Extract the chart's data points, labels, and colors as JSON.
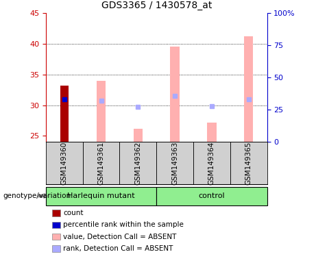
{
  "title": "GDS3365 / 1430578_at",
  "samples": [
    "GSM149360",
    "GSM149361",
    "GSM149362",
    "GSM149363",
    "GSM149364",
    "GSM149365"
  ],
  "ylim_left": [
    24,
    45
  ],
  "ylim_right": [
    0,
    100
  ],
  "yticks_left": [
    25,
    30,
    35,
    40,
    45
  ],
  "yticks_right": [
    0,
    25,
    50,
    75,
    100
  ],
  "ytick_labels_right": [
    "0",
    "25",
    "50",
    "75",
    "100%"
  ],
  "count_values": [
    33.2,
    null,
    null,
    null,
    null,
    null
  ],
  "rank_values": [
    31.0,
    null,
    null,
    null,
    null,
    null
  ],
  "absent_value_bars": [
    null,
    34.0,
    26.2,
    39.5,
    27.2,
    41.2
  ],
  "absent_rank_dots": [
    null,
    30.7,
    29.7,
    31.5,
    29.8,
    31.0
  ],
  "bar_bottom": 24,
  "count_color": "#aa0000",
  "rank_color": "#0000cc",
  "absent_value_color": "#ffb0b0",
  "absent_rank_color": "#aaaaff",
  "left_axis_color": "#cc0000",
  "right_axis_color": "#0000cc",
  "label_area_color": "#d0d0d0",
  "group_color": "#90ee90",
  "harlequin_label": "Harlequin mutant",
  "control_label": "control",
  "genotype_label": "genotype/variation",
  "legend_items": [
    {
      "color": "#aa0000",
      "label": "count"
    },
    {
      "color": "#0000cc",
      "label": "percentile rank within the sample"
    },
    {
      "color": "#ffb0b0",
      "label": "value, Detection Call = ABSENT"
    },
    {
      "color": "#aaaaff",
      "label": "rank, Detection Call = ABSENT"
    }
  ]
}
